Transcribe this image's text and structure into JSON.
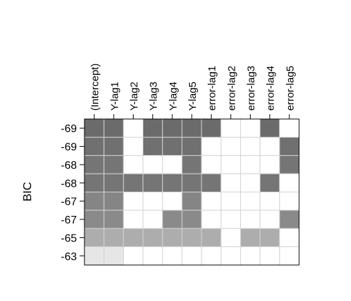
{
  "chart_data": {
    "type": "heatmap",
    "title": "",
    "xlabel": "",
    "ylabel": "BIC",
    "x_labels": [
      "(Intercept)",
      "Y-lag1",
      "Y-lag2",
      "Y-lag3",
      "Y-lag4",
      "Y-lag5",
      "error-lag1",
      "error-lag2",
      "error-lag3",
      "error-lag4",
      "error-lag5"
    ],
    "y_labels": [
      "-69",
      "-69",
      "-68",
      "-68",
      "-67",
      "-67",
      "-65",
      "-63"
    ],
    "shades": [
      [
        0.42,
        0.42,
        1,
        0.42,
        0.42,
        0.42,
        0.42,
        1,
        1,
        0.42,
        1
      ],
      [
        0.44,
        0.44,
        1,
        0.44,
        0.44,
        0.44,
        1,
        1,
        1,
        1,
        0.44
      ],
      [
        0.46,
        0.46,
        1,
        1,
        1,
        0.46,
        1,
        1,
        1,
        1,
        0.46
      ],
      [
        0.46,
        0.46,
        0.46,
        0.46,
        0.46,
        0.46,
        0.46,
        1,
        1,
        0.46,
        1
      ],
      [
        0.52,
        0.52,
        1,
        1,
        1,
        0.52,
        1,
        1,
        1,
        1,
        1
      ],
      [
        0.54,
        0.54,
        1,
        1,
        0.54,
        0.54,
        1,
        1,
        1,
        1,
        0.54
      ],
      [
        0.68,
        0.68,
        0.68,
        0.68,
        0.68,
        0.68,
        0.68,
        1,
        0.68,
        0.68,
        1
      ],
      [
        0.9,
        0.9,
        1,
        1,
        1,
        1,
        1,
        1,
        1,
        1,
        1
      ]
    ],
    "grid": true,
    "legend": "none"
  }
}
